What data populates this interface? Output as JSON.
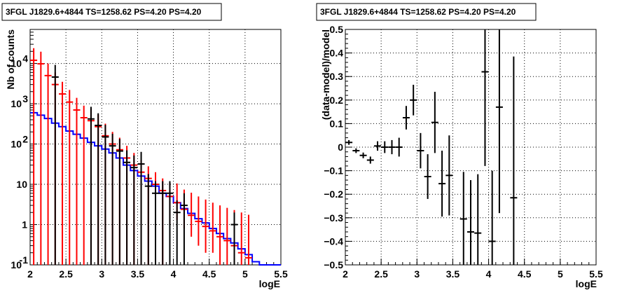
{
  "chart_data": [
    {
      "type": "scatter",
      "title": "3FGL J1829.6+4844 TS=1258.62 PS=4.20 PS=4.20",
      "xlabel": "logE",
      "ylabel": "Nb of counts",
      "xlim": [
        2,
        5.5
      ],
      "ylim": [
        0.1,
        70000
      ],
      "yscale": "log",
      "grid": true,
      "x_ticks": [
        "2",
        "2.5",
        "3",
        "3.5",
        "4",
        "4.5",
        "5",
        "5.5"
      ],
      "y_ticks": [
        {
          "value": 0.1,
          "label": "10",
          "exp": "-1"
        },
        {
          "value": 1,
          "label": "1",
          "exp": ""
        },
        {
          "value": 10,
          "label": "10",
          "exp": ""
        },
        {
          "value": 100,
          "label": "10",
          "exp": "2"
        },
        {
          "value": 1000,
          "label": "10",
          "exp": "3"
        },
        {
          "value": 10000,
          "label": "10",
          "exp": "4"
        }
      ],
      "series": [
        {
          "color": "#0000ff",
          "style": "step",
          "bin_edges": [
            2.0,
            2.1,
            2.2,
            2.3,
            2.4,
            2.5,
            2.6,
            2.7,
            2.8,
            2.9,
            3.0,
            3.1,
            3.2,
            3.3,
            3.4,
            3.5,
            3.6,
            3.7,
            3.8,
            3.9,
            4.0,
            4.1,
            4.2,
            4.3,
            4.4,
            4.5,
            4.6,
            4.7,
            4.8,
            4.9,
            5.0,
            5.1,
            5.2,
            5.5
          ],
          "values": [
            600,
            520,
            430,
            330,
            270,
            210,
            175,
            140,
            110,
            90,
            75,
            60,
            45,
            30,
            22,
            16,
            12,
            9,
            6,
            5,
            3.5,
            2.5,
            1.9,
            1.4,
            1.1,
            0.8,
            0.6,
            0.45,
            0.35,
            0.25,
            0.18,
            0.12,
            0.1
          ]
        },
        {
          "color": "#ff0000",
          "style": "errorbar",
          "x": [
            2.05,
            2.15,
            2.25,
            2.35,
            2.45,
            2.55,
            2.65,
            2.75,
            2.85,
            2.95,
            3.05,
            3.15,
            3.25,
            3.35,
            3.45,
            3.55,
            3.65,
            3.75,
            3.85,
            3.95,
            4.05,
            4.15,
            4.25,
            4.35,
            4.45,
            4.55,
            4.65,
            4.75,
            4.85,
            4.95,
            5.05
          ],
          "y": [
            12000,
            9800,
            5000,
            3000,
            1750,
            1100,
            700,
            450,
            380,
            270,
            160,
            100,
            72,
            45,
            30,
            20,
            14,
            10,
            7,
            5,
            3.5,
            2.4,
            1.7,
            1.2,
            0.9,
            0.7,
            0.5,
            0.4,
            0.3,
            0.2,
            0.15
          ],
          "yerr_low": [
            12000,
            9800,
            5000,
            3000,
            1750,
            1100,
            700,
            450,
            380,
            270,
            160,
            100,
            72,
            45,
            30,
            20,
            14,
            10,
            7,
            4,
            2.2,
            1.6,
            1.2,
            0.9,
            0.7,
            0.5,
            0.4,
            0.3,
            0.2,
            0.15,
            0.1
          ],
          "yerr_high": [
            12000,
            9800,
            5000,
            3000,
            1750,
            1100,
            700,
            450,
            380,
            270,
            160,
            100,
            72,
            45,
            30,
            20,
            14,
            10,
            7,
            6,
            7,
            5,
            4.5,
            3.8,
            3.3,
            2.8,
            2.5,
            2.2,
            2.0,
            1.8,
            1.6
          ]
        },
        {
          "color": "#000000",
          "style": "errorbar",
          "x": [
            2.35,
            2.85,
            2.95,
            3.05,
            3.15,
            3.25,
            3.35,
            3.45,
            3.55,
            3.65,
            3.75,
            3.85,
            3.95,
            4.05,
            4.15,
            4.85
          ],
          "y": [
            4600,
            420,
            290,
            150,
            90,
            67,
            35,
            26,
            32,
            9,
            6,
            6,
            6,
            2,
            3,
            1
          ],
          "yerr_low": [
            4600,
            420,
            290,
            150,
            90,
            67,
            35,
            26,
            32,
            9,
            6,
            6,
            6,
            2,
            3,
            1
          ],
          "yerr_high": [
            4600,
            420,
            290,
            150,
            90,
            67,
            35,
            26,
            32,
            9,
            6,
            6,
            6,
            2,
            3,
            1
          ]
        }
      ]
    },
    {
      "type": "scatter",
      "title": "3FGL J1829.6+4844 TS=1258.62 PS=4.20 PS=4.20",
      "xlabel": "logE",
      "ylabel": "(data-model)/model",
      "xlim": [
        2,
        5.5
      ],
      "ylim": [
        -0.5,
        0.5
      ],
      "grid": true,
      "x_ticks": [
        "2",
        "2.5",
        "3",
        "3.5",
        "4",
        "4.5",
        "5",
        "5.5"
      ],
      "y_ticks": [
        "−0.5",
        "−0.4",
        "−0.3",
        "−0.2",
        "−0.1",
        "0",
        "0.1",
        "0.2",
        "0.3",
        "0.4",
        "0.5"
      ],
      "series": [
        {
          "color": "#000000",
          "style": "errorbar",
          "x": [
            2.05,
            2.15,
            2.25,
            2.35,
            2.45,
            2.55,
            2.65,
            2.75,
            2.85,
            2.95,
            3.05,
            3.15,
            3.25,
            3.35,
            3.45,
            3.65,
            3.75,
            3.85,
            3.95,
            4.05,
            4.15,
            4.35
          ],
          "y": [
            0.02,
            -0.015,
            -0.035,
            -0.055,
            0.005,
            0.0,
            0.0,
            0.0,
            0.125,
            0.2,
            -0.015,
            -0.125,
            0.105,
            -0.155,
            -0.12,
            -0.305,
            -0.36,
            -0.365,
            0.32,
            -0.4,
            0.17,
            -0.215
          ],
          "yerr": [
            0.01,
            0.01,
            0.012,
            0.015,
            0.02,
            0.025,
            0.03,
            0.04,
            0.05,
            0.065,
            0.075,
            0.095,
            0.13,
            0.14,
            0.17,
            0.2,
            0.22,
            0.25,
            0.4,
            0.3,
            0.45,
            0.6
          ]
        }
      ]
    }
  ]
}
